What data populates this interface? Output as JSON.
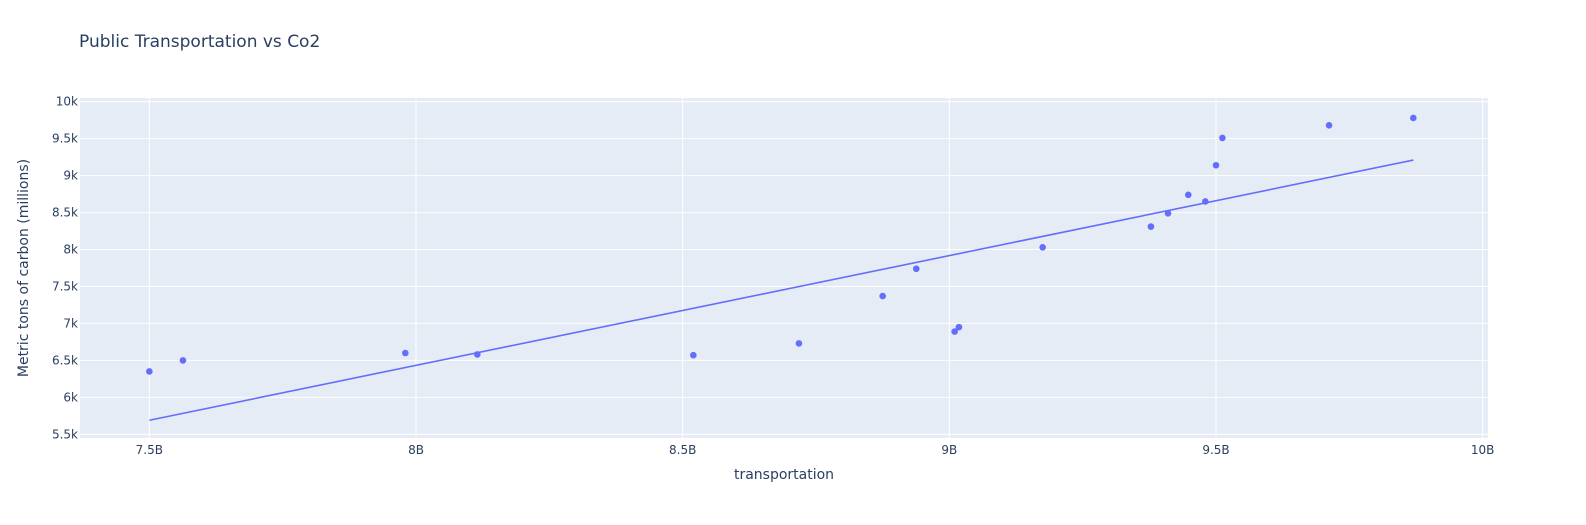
{
  "chart_data": {
    "type": "scatter",
    "title": "Public Transportation vs Co2",
    "xlabel": "transportation",
    "ylabel": "Metric tons of carbon (millions)",
    "xlim": [
      7370000000,
      10010000000
    ],
    "ylim": [
      5450,
      10050
    ],
    "x_ticks": [
      7500000000,
      8000000000,
      8500000000,
      9000000000,
      9500000000,
      10000000000
    ],
    "x_tick_labels": [
      "7.5B",
      "8B",
      "8.5B",
      "9B",
      "9.5B",
      "10B"
    ],
    "y_ticks": [
      5500,
      6000,
      6500,
      7000,
      7500,
      8000,
      8500,
      9000,
      9500,
      10000
    ],
    "y_tick_labels": [
      "5.5k",
      "6k",
      "6.5k",
      "7k",
      "7.5k",
      "8k",
      "8.5k",
      "9k",
      "9.5k",
      "10k"
    ],
    "grid": true,
    "background_color": "#e5ecf6",
    "marker_color": "#636efa",
    "series": [
      {
        "x": [
          7500000000,
          7563000000,
          7980000000,
          8115000000,
          8520000000,
          8718000000,
          8875000000,
          8938000000,
          9010000000,
          9018000000,
          9175000000,
          9378000000,
          9410000000,
          9448000000,
          9480000000,
          9500000000,
          9512000000,
          9712000000,
          9870000000
        ],
        "y": [
          6350,
          6500,
          6600,
          6580,
          6570,
          6730,
          7370,
          7740,
          6890,
          6950,
          8030,
          8310,
          8490,
          8740,
          8650,
          9140,
          9510,
          9680,
          9780
        ]
      }
    ],
    "trendline": {
      "x": [
        7500000000,
        9870000000
      ],
      "y": [
        5690,
        9210
      ]
    }
  }
}
